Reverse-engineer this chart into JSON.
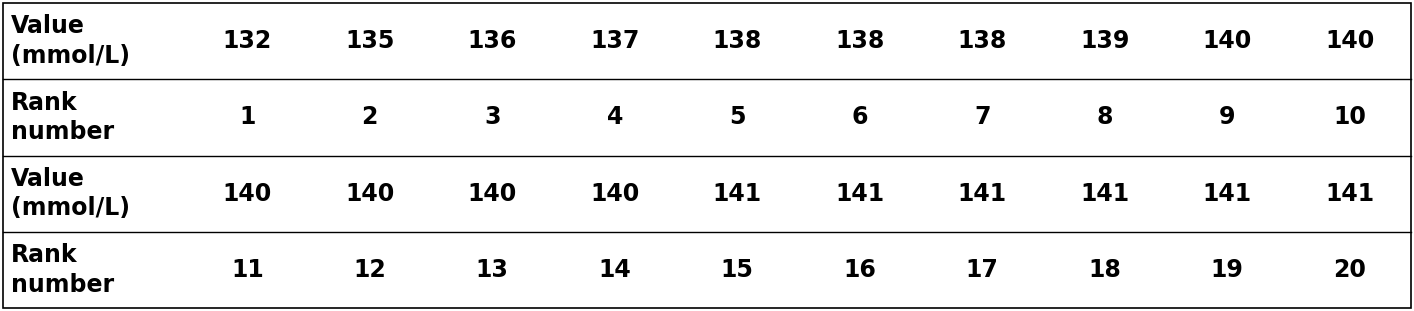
{
  "row1_label": "Value\n(mmol/L)",
  "row2_label": "Rank\nnumber",
  "row3_label": "Value\n(mmol/L)",
  "row4_label": "Rank\nnumber",
  "row1_values": [
    "132",
    "135",
    "136",
    "137",
    "138",
    "138",
    "138",
    "139",
    "140",
    "140"
  ],
  "row2_values": [
    "1",
    "2",
    "3",
    "4",
    "5",
    "6",
    "7",
    "8",
    "9",
    "10"
  ],
  "row3_values": [
    "140",
    "140",
    "140",
    "140",
    "141",
    "141",
    "141",
    "141",
    "141",
    "141"
  ],
  "row4_values": [
    "11",
    "12",
    "13",
    "14",
    "15",
    "16",
    "17",
    "18",
    "19",
    "20"
  ],
  "border_color": "#000000",
  "bg_color": "#ffffff",
  "text_color": "#000000",
  "font_size": 17,
  "figwidth": 14.14,
  "figheight": 3.11,
  "dpi": 100
}
